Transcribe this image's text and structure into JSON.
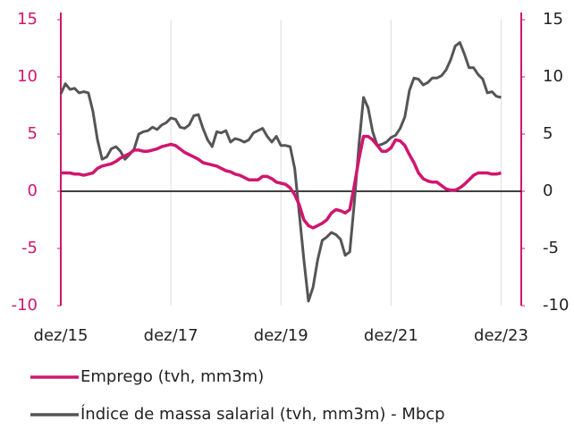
{
  "chart_data": {
    "type": "line",
    "categories": [
      "dez/15",
      null,
      null,
      null,
      null,
      null,
      null,
      null,
      null,
      null,
      null,
      null,
      null,
      null,
      null,
      null,
      null,
      null,
      null,
      null,
      null,
      null,
      null,
      null,
      "dez/17",
      null,
      null,
      null,
      null,
      null,
      null,
      null,
      null,
      null,
      null,
      null,
      null,
      null,
      null,
      null,
      null,
      null,
      null,
      null,
      null,
      null,
      null,
      null,
      "dez/19",
      null,
      null,
      null,
      null,
      null,
      null,
      null,
      null,
      null,
      null,
      null,
      null,
      null,
      null,
      null,
      null,
      null,
      null,
      null,
      null,
      null,
      null,
      null,
      "dez/21",
      null,
      null,
      null,
      null,
      null,
      null,
      null,
      null,
      null,
      null,
      null,
      null,
      null,
      null,
      null,
      null,
      null,
      null,
      null,
      null,
      null,
      null,
      null,
      "dez/23"
    ],
    "series": [
      {
        "name": "Emprego (tvh, mm3m)",
        "color": "#d0166f",
        "axis": "y",
        "values": [
          1.6,
          1.6,
          1.6,
          1.5,
          1.5,
          1.4,
          1.5,
          1.6,
          2.0,
          2.2,
          2.3,
          2.4,
          2.6,
          2.9,
          3.1,
          3.3,
          3.6,
          3.6,
          3.5,
          3.5,
          3.6,
          3.7,
          3.9,
          4.0,
          4.1,
          4.0,
          3.7,
          3.4,
          3.2,
          3.0,
          2.8,
          2.5,
          2.4,
          2.3,
          2.2,
          2.0,
          1.8,
          1.7,
          1.5,
          1.4,
          1.2,
          1.0,
          1.0,
          1.0,
          1.3,
          1.3,
          1.1,
          0.8,
          0.7,
          0.6,
          0.3,
          -0.3,
          -1.2,
          -2.5,
          -3.0,
          -3.2,
          -3.0,
          -2.8,
          -2.5,
          -1.9,
          -1.6,
          -1.7,
          -1.9,
          -1.6,
          0.5,
          2.8,
          4.8,
          4.8,
          4.5,
          4.0,
          3.5,
          3.5,
          3.8,
          4.5,
          4.4,
          4.0,
          3.2,
          2.5,
          1.6,
          1.1,
          0.9,
          0.8,
          0.8,
          0.5,
          0.2,
          0.1,
          0.1,
          0.3,
          0.6,
          1.0,
          1.4,
          1.6,
          1.6,
          1.6,
          1.5,
          1.5,
          1.6
        ]
      },
      {
        "name": "Índice de massa salarial (tvh, mm3m) - Mbcp",
        "color": "#555555",
        "axis": "y2",
        "values": [
          8.5,
          9.4,
          8.9,
          9.0,
          8.6,
          8.7,
          8.6,
          7.0,
          4.5,
          2.8,
          3.0,
          3.7,
          3.9,
          3.5,
          2.8,
          3.2,
          3.7,
          5.0,
          5.2,
          5.3,
          5.6,
          5.4,
          5.8,
          6.0,
          6.4,
          6.3,
          5.6,
          5.5,
          5.8,
          6.6,
          6.7,
          5.5,
          4.5,
          3.9,
          5.2,
          5.1,
          5.3,
          4.3,
          4.6,
          4.5,
          4.3,
          4.5,
          5.1,
          5.3,
          5.5,
          4.8,
          4.3,
          4.8,
          4.0,
          4.0,
          3.9,
          2.0,
          -2.0,
          -6.0,
          -9.6,
          -8.4,
          -6.0,
          -4.3,
          -4.0,
          -3.6,
          -3.8,
          -4.2,
          -5.6,
          -5.3,
          -1.0,
          4.0,
          8.2,
          7.3,
          5.2,
          4.0,
          4.1,
          4.3,
          4.7,
          4.9,
          5.5,
          6.5,
          8.8,
          9.9,
          9.8,
          9.3,
          9.5,
          9.9,
          9.9,
          10.1,
          10.6,
          11.5,
          12.7,
          13.0,
          12.0,
          10.8,
          10.8,
          10.2,
          9.8,
          8.6,
          8.7,
          8.3,
          8.2
        ]
      }
    ],
    "ylim": [
      -10,
      15
    ],
    "yticks": [
      15,
      10,
      5,
      0,
      -5,
      -10
    ],
    "y2lim": [
      -10,
      15
    ],
    "y2ticks": [
      15,
      10,
      5,
      0,
      -5,
      -10
    ],
    "grid": true,
    "legend": "bottom"
  }
}
